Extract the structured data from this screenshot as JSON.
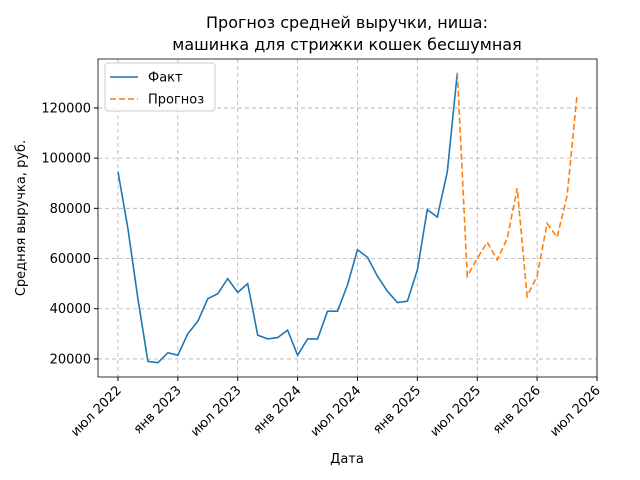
{
  "chart_data": {
    "type": "line",
    "title": [
      "Прогноз средней выручки, ниша:",
      "машинка для стрижки кошек бесшумная"
    ],
    "xlabel": "Дата",
    "ylabel": "Средняя выручка, руб.",
    "x": [
      "2022-07",
      "2022-08",
      "2022-09",
      "2022-10",
      "2022-11",
      "2022-12",
      "2023-01",
      "2023-02",
      "2023-03",
      "2023-04",
      "2023-05",
      "2023-06",
      "2023-07",
      "2023-08",
      "2023-09",
      "2023-10",
      "2023-11",
      "2023-12",
      "2024-01",
      "2024-02",
      "2024-03",
      "2024-04",
      "2024-05",
      "2024-06",
      "2024-07",
      "2024-08",
      "2024-09",
      "2024-10",
      "2024-11",
      "2024-12",
      "2025-01",
      "2025-02",
      "2025-03",
      "2025-04",
      "2025-05",
      "2025-06",
      "2025-07",
      "2025-08",
      "2025-09",
      "2025-10",
      "2025-11",
      "2025-12",
      "2026-01",
      "2026-02",
      "2026-03",
      "2026-04",
      "2026-05"
    ],
    "series": [
      {
        "name": "Факт",
        "color": "#1f77b4",
        "style": "solid",
        "values": [
          94500,
          72000,
          44000,
          19000,
          18500,
          22500,
          21500,
          30000,
          35000,
          44000,
          46000,
          52000,
          46500,
          50000,
          29500,
          28000,
          28500,
          31500,
          21500,
          28000,
          28000,
          39000,
          39000,
          49500,
          63500,
          60500,
          53000,
          47000,
          42500,
          43000,
          55500,
          79500,
          76500,
          94500,
          134000,
          null,
          null,
          null,
          null,
          null,
          null,
          null,
          null,
          null,
          null,
          null,
          null
        ]
      },
      {
        "name": "Прогноз",
        "color": "#ff7f0e",
        "style": "dashed",
        "values": [
          null,
          null,
          null,
          null,
          null,
          null,
          null,
          null,
          null,
          null,
          null,
          null,
          null,
          null,
          null,
          null,
          null,
          null,
          null,
          null,
          null,
          null,
          null,
          null,
          null,
          null,
          null,
          null,
          null,
          null,
          null,
          null,
          null,
          null,
          134000,
          53000,
          60000,
          66500,
          59500,
          68000,
          88000,
          45000,
          53000,
          74000,
          68500,
          85000,
          125000
        ]
      }
    ],
    "xlim": [
      "2022-05",
      "2026-07"
    ],
    "xticks": [
      {
        "value": "2022-07",
        "label": "июл 2022"
      },
      {
        "value": "2023-01",
        "label": "янв 2023"
      },
      {
        "value": "2023-07",
        "label": "июл 2023"
      },
      {
        "value": "2024-01",
        "label": "янв 2024"
      },
      {
        "value": "2024-07",
        "label": "июл 2024"
      },
      {
        "value": "2025-01",
        "label": "янв 2025"
      },
      {
        "value": "2025-07",
        "label": "июл 2025"
      },
      {
        "value": "2026-01",
        "label": "янв 2026"
      },
      {
        "value": "2026-07",
        "label": "июл 2026"
      }
    ],
    "ylim": [
      12800,
      139500
    ],
    "yticks": [
      20000,
      40000,
      60000,
      80000,
      100000,
      120000
    ],
    "grid": true,
    "legend": "upper left"
  }
}
